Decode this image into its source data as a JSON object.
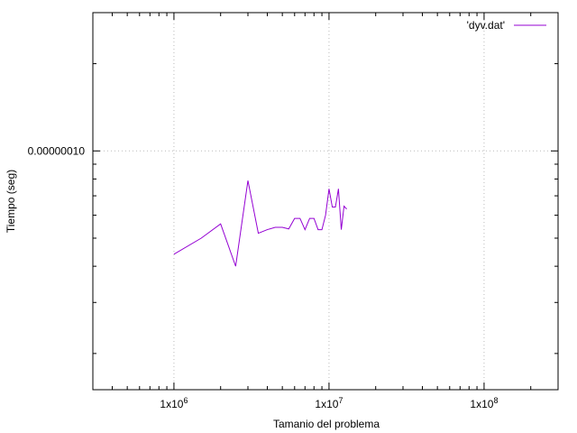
{
  "chart_data": {
    "type": "line",
    "xlabel": "Tamanio del problema",
    "ylabel": "Tiempo (seg)",
    "xscale": "log",
    "yscale": "log",
    "xlim": [
      300000,
      300000000
    ],
    "ylim": [
      1.5e-08,
      3e-07
    ],
    "x_ticks": [
      {
        "value": 1000000,
        "base": "1x10",
        "exp": "6"
      },
      {
        "value": 10000000,
        "base": "1x10",
        "exp": "7"
      },
      {
        "value": 100000000,
        "base": "1x10",
        "exp": "8"
      }
    ],
    "y_ticks": [
      {
        "value": 1e-07,
        "label": "0.00000010"
      }
    ],
    "grid": true,
    "legend_position": "top-right",
    "series": [
      {
        "name": "'dyv.dat'",
        "color": "#9400d3",
        "x": [
          1000000,
          1500000,
          2000000,
          2500000,
          3000000,
          3500000,
          4000000,
          4500000,
          5000000,
          5500000,
          6000000,
          6500000,
          7000000,
          7500000,
          8000000,
          8500000,
          9000000,
          9500000,
          10000000,
          10500000,
          11000000,
          11500000,
          12000000,
          12500000,
          13000000
        ],
        "y": [
          4.4e-08,
          5e-08,
          5.6e-08,
          4e-08,
          7.9e-08,
          5.2e-08,
          5.35e-08,
          5.45e-08,
          5.45e-08,
          5.38e-08,
          5.85e-08,
          5.85e-08,
          5.35e-08,
          5.85e-08,
          5.85e-08,
          5.35e-08,
          5.35e-08,
          6e-08,
          7.4e-08,
          6.4e-08,
          6.4e-08,
          7.4e-08,
          5.35e-08,
          6.45e-08,
          6.3e-08
        ]
      }
    ]
  }
}
